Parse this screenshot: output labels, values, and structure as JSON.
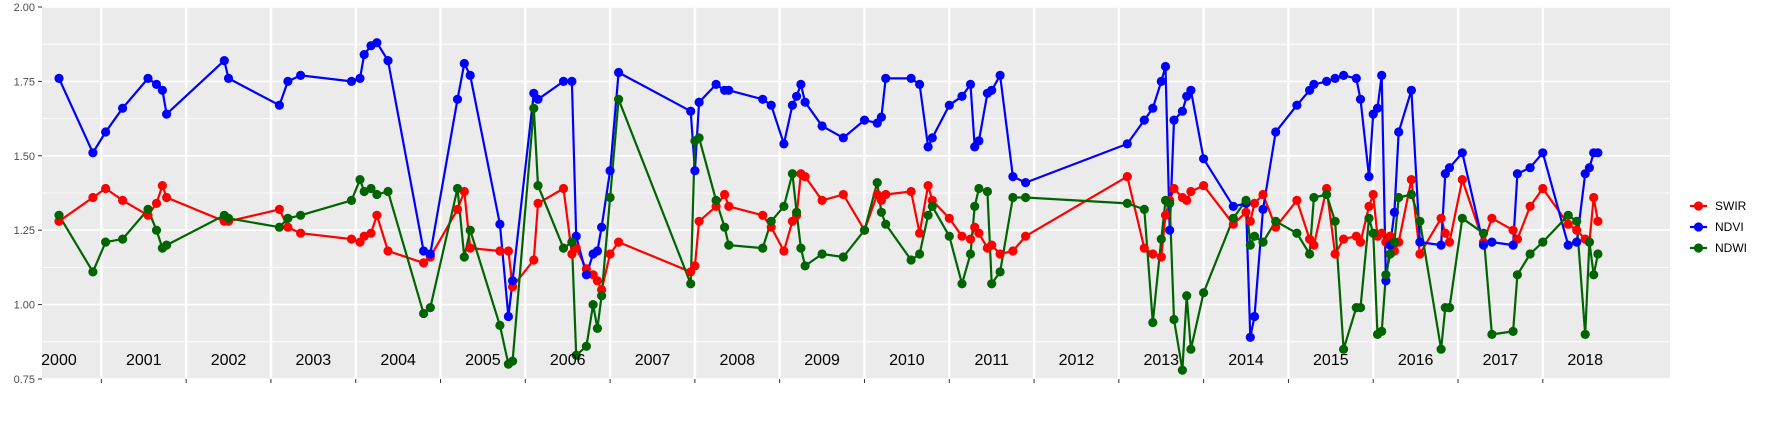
{
  "chart_data": {
    "type": "line",
    "title": "",
    "xlabel": "",
    "ylabel": "",
    "ylim": [
      0.75,
      2.0
    ],
    "yticks": [
      "0.75",
      "1.00",
      "1.25",
      "1.50",
      "1.75",
      "2.00"
    ],
    "xlim": [
      1999.8,
      2019.0
    ],
    "facet_labels": [
      "2000",
      "2001",
      "2002",
      "2003",
      "2004",
      "2005",
      "2006",
      "2007",
      "2008",
      "2009",
      "2010",
      "2011",
      "2012",
      "2013",
      "2014",
      "2015",
      "2016",
      "2017",
      "2018"
    ],
    "legend_position": "right",
    "grid": true,
    "colors": {
      "SWIR": "#ff0000",
      "NDVI": "#0000ff",
      "NDWI": "#006400",
      "panel_bg": "#ebebeb",
      "grid": "#ffffff"
    },
    "series": [
      {
        "name": "SWIR",
        "color": "#ff0000",
        "x": [
          2000.0,
          2000.4,
          2000.55,
          2000.75,
          2001.05,
          2001.15,
          2001.22,
          2001.27,
          2001.95,
          2002.0,
          2002.6,
          2002.7,
          2002.85,
          2003.45,
          2003.55,
          2003.6,
          2003.68,
          2003.75,
          2003.88,
          2004.3,
          2004.38,
          2004.7,
          2004.78,
          2004.85,
          2005.2,
          2005.3,
          2005.35,
          2005.6,
          2005.65,
          2005.95,
          2006.05,
          2006.1,
          2006.22,
          2006.3,
          2006.35,
          2006.4,
          2006.5,
          2006.6,
          2007.45,
          2007.5,
          2007.55,
          2007.75,
          2007.85,
          2007.9,
          2008.3,
          2008.4,
          2008.55,
          2008.65,
          2008.7,
          2008.75,
          2008.8,
          2009.0,
          2009.25,
          2009.5,
          2009.65,
          2009.7,
          2009.75,
          2010.05,
          2010.15,
          2010.25,
          2010.3,
          2010.5,
          2010.65,
          2010.75,
          2010.8,
          2010.85,
          2010.95,
          2011.0,
          2011.1,
          2011.25,
          2011.4,
          2012.6,
          2012.8,
          2012.9,
          2013.0,
          2013.05,
          2013.1,
          2013.15,
          2013.25,
          2013.3,
          2013.35,
          2013.5,
          2013.85,
          2014.0,
          2014.05,
          2014.1,
          2014.2,
          2014.35,
          2014.6,
          2014.75,
          2014.8,
          2014.95,
          2015.05,
          2015.15,
          2015.3,
          2015.35,
          2015.45,
          2015.5,
          2015.55,
          2015.6,
          2015.65,
          2015.7,
          2015.75,
          2015.8,
          2015.95,
          2016.05,
          2016.3,
          2016.35,
          2016.4,
          2016.55,
          2016.8,
          2016.9,
          2017.15,
          2017.2,
          2017.35,
          2017.5,
          2017.8,
          2017.9,
          2018.0,
          2018.05,
          2018.1,
          2018.15
        ],
        "values": [
          1.28,
          1.36,
          1.39,
          1.35,
          1.3,
          1.34,
          1.4,
          1.36,
          1.28,
          1.28,
          1.32,
          1.26,
          1.24,
          1.22,
          1.21,
          1.23,
          1.24,
          1.3,
          1.18,
          1.14,
          1.16,
          1.32,
          1.38,
          1.19,
          1.18,
          1.18,
          1.06,
          1.15,
          1.34,
          1.39,
          1.17,
          1.19,
          1.12,
          1.1,
          1.08,
          1.05,
          1.17,
          1.21,
          1.11,
          1.13,
          1.28,
          1.33,
          1.37,
          1.33,
          1.3,
          1.26,
          1.18,
          1.28,
          1.3,
          1.44,
          1.43,
          1.35,
          1.37,
          1.25,
          1.37,
          1.35,
          1.37,
          1.38,
          1.24,
          1.4,
          1.35,
          1.29,
          1.23,
          1.22,
          1.26,
          1.24,
          1.19,
          1.2,
          1.17,
          1.18,
          1.23,
          1.43,
          1.19,
          1.17,
          1.16,
          1.3,
          1.35,
          1.39,
          1.36,
          1.35,
          1.38,
          1.4,
          1.27,
          1.31,
          1.28,
          1.34,
          1.37,
          1.26,
          1.35,
          1.22,
          1.2,
          1.39,
          1.17,
          1.22,
          1.23,
          1.21,
          1.33,
          1.37,
          1.23,
          1.24,
          1.21,
          1.23,
          1.18,
          1.21,
          1.42,
          1.17,
          1.29,
          1.24,
          1.21,
          1.42,
          1.21,
          1.29,
          1.25,
          1.22,
          1.33,
          1.39,
          1.27,
          1.25,
          1.22,
          1.21,
          1.36,
          1.28
        ],
        "points_note": "approximate readings"
      },
      {
        "name": "NDVI",
        "color": "#0000ff",
        "x": [
          2000.0,
          2000.4,
          2000.55,
          2000.75,
          2001.05,
          2001.15,
          2001.22,
          2001.27,
          2001.95,
          2002.0,
          2002.6,
          2002.7,
          2002.85,
          2003.45,
          2003.55,
          2003.6,
          2003.68,
          2003.75,
          2003.88,
          2004.3,
          2004.38,
          2004.7,
          2004.78,
          2004.85,
          2005.2,
          2005.3,
          2005.35,
          2005.6,
          2005.65,
          2005.95,
          2006.05,
          2006.1,
          2006.22,
          2006.3,
          2006.35,
          2006.4,
          2006.5,
          2006.6,
          2007.45,
          2007.5,
          2007.55,
          2007.75,
          2007.85,
          2007.9,
          2008.3,
          2008.4,
          2008.55,
          2008.65,
          2008.7,
          2008.75,
          2008.8,
          2009.0,
          2009.25,
          2009.5,
          2009.65,
          2009.7,
          2009.75,
          2010.05,
          2010.15,
          2010.25,
          2010.3,
          2010.5,
          2010.65,
          2010.75,
          2010.8,
          2010.85,
          2010.95,
          2011.0,
          2011.1,
          2011.25,
          2011.4,
          2012.6,
          2012.8,
          2012.9,
          2013.0,
          2013.05,
          2013.1,
          2013.15,
          2013.25,
          2013.3,
          2013.35,
          2013.5,
          2013.85,
          2014.0,
          2014.05,
          2014.1,
          2014.2,
          2014.35,
          2014.6,
          2014.75,
          2014.8,
          2014.95,
          2015.05,
          2015.15,
          2015.3,
          2015.35,
          2015.45,
          2015.5,
          2015.55,
          2015.6,
          2015.65,
          2015.7,
          2015.75,
          2015.8,
          2015.95,
          2016.05,
          2016.3,
          2016.35,
          2016.4,
          2016.55,
          2016.8,
          2016.9,
          2017.15,
          2017.2,
          2017.35,
          2017.5,
          2017.8,
          2017.9,
          2018.0,
          2018.05,
          2018.1,
          2018.15
        ],
        "values": [
          1.76,
          1.51,
          1.58,
          1.66,
          1.76,
          1.74,
          1.72,
          1.64,
          1.82,
          1.76,
          1.67,
          1.75,
          1.77,
          1.75,
          1.76,
          1.84,
          1.87,
          1.88,
          1.82,
          1.18,
          1.17,
          1.69,
          1.81,
          1.77,
          1.27,
          0.96,
          1.08,
          1.71,
          1.69,
          1.75,
          1.75,
          1.23,
          1.1,
          1.17,
          1.18,
          1.26,
          1.45,
          1.78,
          1.65,
          1.45,
          1.68,
          1.74,
          1.72,
          1.72,
          1.69,
          1.67,
          1.54,
          1.67,
          1.7,
          1.74,
          1.68,
          1.6,
          1.56,
          1.62,
          1.61,
          1.63,
          1.76,
          1.76,
          1.74,
          1.53,
          1.56,
          1.67,
          1.7,
          1.74,
          1.53,
          1.55,
          1.71,
          1.72,
          1.77,
          1.43,
          1.41,
          1.54,
          1.62,
          1.66,
          1.75,
          1.8,
          1.25,
          1.62,
          1.65,
          1.7,
          1.72,
          1.49,
          1.33,
          1.34,
          0.89,
          0.96,
          1.32,
          1.58,
          1.67,
          1.72,
          1.74,
          1.75,
          1.76,
          1.77,
          1.76,
          1.69,
          1.43,
          1.64,
          1.66,
          1.77,
          1.08,
          1.2,
          1.31,
          1.58,
          1.72,
          1.21,
          1.2,
          1.44,
          1.46,
          1.51,
          1.2,
          1.21,
          1.2,
          1.44,
          1.46,
          1.51,
          1.2,
          1.21,
          1.44,
          1.46,
          1.51,
          1.51
        ],
        "points_note": "approximate readings"
      },
      {
        "name": "NDWI",
        "color": "#006400",
        "x": [
          2000.0,
          2000.4,
          2000.55,
          2000.75,
          2001.05,
          2001.15,
          2001.22,
          2001.27,
          2001.95,
          2002.0,
          2002.6,
          2002.7,
          2002.85,
          2003.45,
          2003.55,
          2003.6,
          2003.68,
          2003.75,
          2003.88,
          2004.3,
          2004.38,
          2004.7,
          2004.78,
          2004.85,
          2005.2,
          2005.3,
          2005.35,
          2005.6,
          2005.65,
          2005.95,
          2006.05,
          2006.1,
          2006.22,
          2006.3,
          2006.35,
          2006.4,
          2006.5,
          2006.6,
          2007.45,
          2007.5,
          2007.55,
          2007.75,
          2007.85,
          2007.9,
          2008.3,
          2008.4,
          2008.55,
          2008.65,
          2008.7,
          2008.75,
          2008.8,
          2009.0,
          2009.25,
          2009.5,
          2009.65,
          2009.7,
          2009.75,
          2010.05,
          2010.15,
          2010.25,
          2010.3,
          2010.5,
          2010.65,
          2010.75,
          2010.8,
          2010.85,
          2010.95,
          2011.0,
          2011.1,
          2011.25,
          2011.4,
          2012.6,
          2012.8,
          2012.9,
          2013.0,
          2013.05,
          2013.1,
          2013.15,
          2013.25,
          2013.3,
          2013.35,
          2013.5,
          2013.85,
          2014.0,
          2014.05,
          2014.1,
          2014.2,
          2014.35,
          2014.6,
          2014.75,
          2014.8,
          2014.95,
          2015.05,
          2015.15,
          2015.3,
          2015.35,
          2015.45,
          2015.5,
          2015.55,
          2015.6,
          2015.65,
          2015.7,
          2015.75,
          2015.8,
          2015.95,
          2016.05,
          2016.3,
          2016.35,
          2016.4,
          2016.55,
          2016.8,
          2016.9,
          2017.15,
          2017.2,
          2017.35,
          2017.5,
          2017.8,
          2017.9,
          2018.0,
          2018.05,
          2018.1,
          2018.15
        ],
        "values": [
          1.3,
          1.11,
          1.21,
          1.22,
          1.32,
          1.25,
          1.19,
          1.2,
          1.3,
          1.29,
          1.26,
          1.29,
          1.3,
          1.35,
          1.42,
          1.38,
          1.39,
          1.37,
          1.38,
          0.97,
          0.99,
          1.39,
          1.16,
          1.25,
          0.93,
          0.8,
          0.81,
          1.66,
          1.4,
          1.19,
          1.21,
          0.83,
          0.86,
          1.0,
          0.92,
          1.03,
          1.36,
          1.69,
          1.07,
          1.55,
          1.56,
          1.35,
          1.26,
          1.2,
          1.19,
          1.28,
          1.33,
          1.44,
          1.31,
          1.19,
          1.13,
          1.17,
          1.16,
          1.25,
          1.41,
          1.31,
          1.27,
          1.15,
          1.17,
          1.3,
          1.33,
          1.23,
          1.07,
          1.17,
          1.33,
          1.39,
          1.38,
          1.07,
          1.11,
          1.36,
          1.36,
          1.34,
          1.32,
          0.94,
          1.22,
          1.35,
          1.34,
          0.95,
          0.78,
          1.03,
          0.85,
          1.04,
          1.29,
          1.35,
          1.2,
          1.23,
          1.21,
          1.28,
          1.24,
          1.17,
          1.36,
          1.37,
          1.28,
          0.85,
          0.99,
          0.99,
          1.29,
          1.24,
          0.9,
          0.91,
          1.1,
          1.17,
          1.21,
          1.36,
          1.37,
          1.28,
          0.85,
          0.99,
          0.99,
          1.29,
          1.24,
          0.9,
          0.91,
          1.1,
          1.17,
          1.21,
          1.3,
          1.28,
          0.9,
          1.21,
          1.1,
          1.17
        ],
        "points_note": "approximate readings"
      }
    ]
  }
}
